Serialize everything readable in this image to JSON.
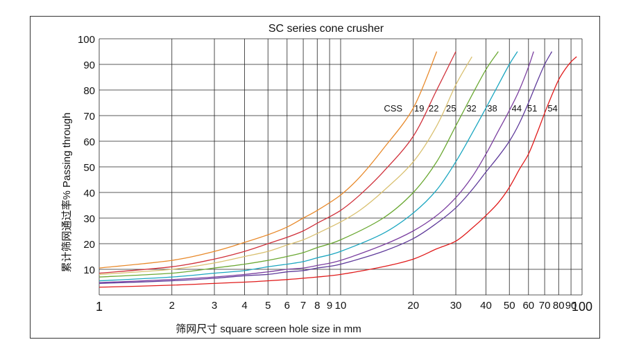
{
  "chart_data": {
    "type": "line",
    "title": "SC series cone crusher",
    "xlabel": "筛网尺寸 square screen hole size in mm",
    "ylabel": "累计筛网通过率%  Passing through",
    "x_scale": "log",
    "xlim": [
      1,
      100
    ],
    "ylim": [
      0,
      100
    ],
    "grid": true,
    "x_ticks": [
      1,
      2,
      3,
      4,
      5,
      6,
      7,
      8,
      9,
      10,
      20,
      30,
      40,
      50,
      60,
      70,
      80,
      90,
      100
    ],
    "x_tick_labels": [
      "1",
      "2",
      "3",
      "4",
      "5",
      "6",
      "7",
      "8",
      "9",
      "10",
      "20",
      "30",
      "40",
      "50",
      "60",
      "70",
      "80",
      "90",
      "100"
    ],
    "y_ticks": [
      10,
      20,
      30,
      40,
      50,
      60,
      70,
      80,
      90,
      100
    ],
    "y_tick_labels": [
      "10",
      "20",
      "30",
      "40",
      "50",
      "60",
      "70",
      "80",
      "90",
      "100"
    ],
    "legend_prefix": "CSS",
    "series": [
      {
        "name": "19",
        "color": "#e8892a",
        "x": [
          1,
          2,
          3,
          4,
          5,
          6,
          7,
          8,
          10,
          12,
          15,
          20,
          25
        ],
        "y": [
          10.5,
          13.5,
          17,
          20.5,
          23.5,
          26.5,
          30,
          33,
          39,
          46,
          57,
          73,
          95
        ]
      },
      {
        "name": "22",
        "color": "#d0303a",
        "x": [
          1,
          2,
          3,
          4,
          5,
          6,
          7,
          8,
          10,
          12,
          15,
          20,
          25,
          30
        ],
        "y": [
          8.5,
          11,
          14,
          17,
          20,
          22.5,
          25,
          28,
          33,
          39,
          48,
          62,
          80,
          95
        ]
      },
      {
        "name": "25",
        "color": "#d9c070",
        "x": [
          1,
          2,
          3,
          4,
          5,
          6,
          7,
          8,
          10,
          12,
          15,
          20,
          25,
          30,
          35
        ],
        "y": [
          8,
          10,
          12.5,
          15,
          17,
          19.5,
          21.5,
          24,
          28.5,
          33,
          40.5,
          52,
          66,
          82,
          93
        ]
      },
      {
        "name": "32",
        "color": "#6aa832",
        "x": [
          1,
          2,
          3,
          4,
          5,
          6,
          7,
          8,
          10,
          15,
          20,
          25,
          30,
          35,
          40,
          45
        ],
        "y": [
          7,
          8.5,
          10.5,
          12,
          13.5,
          15,
          16.5,
          18.5,
          21.5,
          30,
          40,
          52,
          66,
          78,
          88,
          95
        ]
      },
      {
        "name": "38",
        "color": "#1aa6c0",
        "x": [
          1,
          2,
          3,
          4,
          5,
          6,
          7,
          8,
          10,
          15,
          20,
          25,
          30,
          35,
          40,
          45,
          50,
          54
        ],
        "y": [
          5.5,
          7,
          8.5,
          9.5,
          11,
          12,
          13,
          14.5,
          17,
          24,
          32,
          41,
          52,
          63,
          73,
          82,
          90,
          95
        ]
      },
      {
        "name": "44",
        "color": "#7b3fa0",
        "x": [
          1,
          2,
          3,
          4,
          5,
          6,
          7,
          8,
          10,
          15,
          20,
          25,
          30,
          35,
          40,
          45,
          50,
          55,
          60,
          63
        ],
        "y": [
          4.8,
          6,
          7,
          8,
          9,
          10,
          10.5,
          11.5,
          13.5,
          19.5,
          25,
          31,
          38,
          46,
          55,
          64,
          72,
          80,
          89,
          95
        ]
      },
      {
        "name": "51",
        "color": "#5e3a9a",
        "x": [
          1,
          2,
          3,
          4,
          5,
          6,
          7,
          8,
          10,
          15,
          20,
          25,
          30,
          35,
          40,
          45,
          50,
          55,
          60,
          65,
          70,
          75
        ],
        "y": [
          4.5,
          5.5,
          6.5,
          7.5,
          8,
          9,
          9.5,
          10.5,
          12,
          17,
          22,
          28,
          34,
          41,
          48,
          54,
          60,
          67,
          75,
          83,
          90,
          95
        ]
      },
      {
        "name": "54",
        "color": "#e01a1a",
        "x": [
          1,
          2,
          3,
          4,
          5,
          6,
          7,
          8,
          10,
          15,
          20,
          25,
          30,
          35,
          40,
          45,
          50,
          55,
          60,
          65,
          70,
          75,
          80,
          85,
          90,
          95
        ],
        "y": [
          3,
          3.8,
          4.5,
          5,
          5.5,
          6,
          6.5,
          7,
          8,
          11,
          14,
          18,
          21,
          26,
          31,
          36,
          42,
          49,
          55,
          63,
          71,
          78,
          84,
          88,
          91,
          93
        ]
      }
    ]
  }
}
